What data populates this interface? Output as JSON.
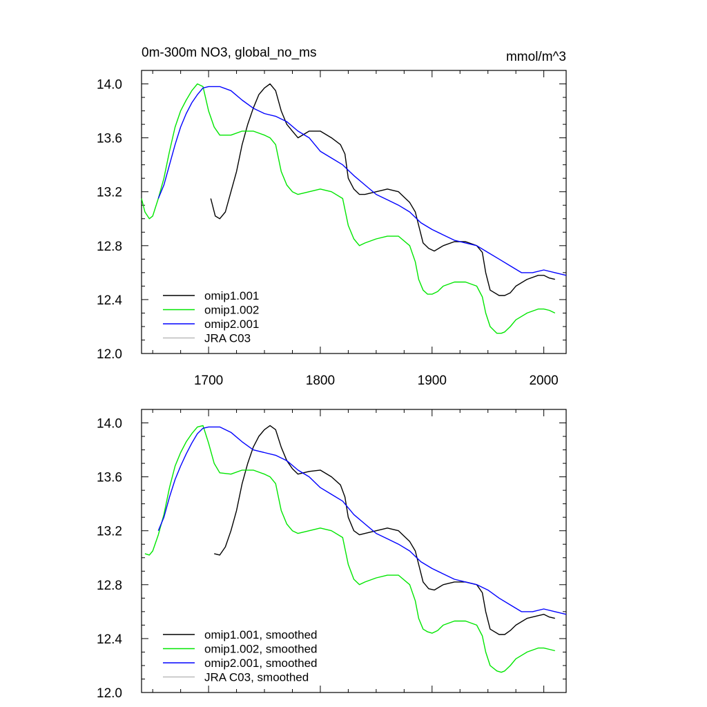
{
  "chart_data": [
    {
      "type": "line",
      "title": "0m-300m NO3, global_no_ms",
      "units": "mmol/m^3",
      "xlim": [
        1640,
        2020
      ],
      "ylim": [
        12.0,
        14.1
      ],
      "x_ticks": [
        1700,
        1800,
        1900,
        2000
      ],
      "y_ticks": [
        12.0,
        12.4,
        12.8,
        13.2,
        13.6,
        14.0
      ],
      "y_tick_labels": [
        "12.0",
        "12.4",
        "12.8",
        "13.2",
        "13.6",
        "14.0"
      ],
      "legend_position": "bottom-left",
      "series": [
        {
          "name": "omip1.001",
          "color": "#000000",
          "x": [
            1702,
            1706,
            1710,
            1715,
            1720,
            1725,
            1730,
            1735,
            1740,
            1745,
            1750,
            1755,
            1760,
            1765,
            1770,
            1775,
            1780,
            1790,
            1800,
            1810,
            1818,
            1822,
            1825,
            1830,
            1835,
            1840,
            1850,
            1860,
            1870,
            1880,
            1885,
            1888,
            1892,
            1897,
            1902,
            1910,
            1920,
            1930,
            1940,
            1945,
            1948,
            1952,
            1960,
            1965,
            1970,
            1975,
            1985,
            1995,
            2000,
            2005,
            2010
          ],
          "y": [
            13.15,
            13.02,
            13.0,
            13.05,
            13.2,
            13.35,
            13.55,
            13.7,
            13.82,
            13.92,
            13.97,
            14.0,
            13.95,
            13.8,
            13.7,
            13.65,
            13.6,
            13.65,
            13.65,
            13.6,
            13.55,
            13.48,
            13.3,
            13.22,
            13.18,
            13.18,
            13.2,
            13.22,
            13.2,
            13.12,
            13.05,
            12.95,
            12.82,
            12.78,
            12.76,
            12.8,
            12.83,
            12.83,
            12.8,
            12.75,
            12.6,
            12.47,
            12.43,
            12.43,
            12.45,
            12.5,
            12.55,
            12.58,
            12.58,
            12.56,
            12.55
          ]
        },
        {
          "name": "omip1.002",
          "color": "#00e600",
          "x": [
            1640,
            1643,
            1647,
            1650,
            1655,
            1660,
            1665,
            1670,
            1675,
            1680,
            1685,
            1690,
            1695,
            1700,
            1705,
            1710,
            1720,
            1730,
            1740,
            1750,
            1755,
            1760,
            1765,
            1770,
            1775,
            1780,
            1790,
            1800,
            1810,
            1820,
            1825,
            1830,
            1835,
            1840,
            1850,
            1860,
            1870,
            1880,
            1885,
            1888,
            1892,
            1896,
            1900,
            1905,
            1910,
            1920,
            1930,
            1940,
            1945,
            1948,
            1952,
            1958,
            1962,
            1965,
            1970,
            1975,
            1985,
            1995,
            2000,
            2005,
            2010
          ],
          "y": [
            13.15,
            13.05,
            13.0,
            13.02,
            13.15,
            13.3,
            13.5,
            13.68,
            13.8,
            13.88,
            13.95,
            14.0,
            13.98,
            13.8,
            13.68,
            13.62,
            13.62,
            13.65,
            13.65,
            13.62,
            13.6,
            13.55,
            13.35,
            13.25,
            13.2,
            13.18,
            13.2,
            13.22,
            13.2,
            13.15,
            12.95,
            12.85,
            12.8,
            12.82,
            12.85,
            12.87,
            12.87,
            12.8,
            12.68,
            12.55,
            12.47,
            12.44,
            12.44,
            12.46,
            12.5,
            12.53,
            12.53,
            12.5,
            12.42,
            12.3,
            12.2,
            12.15,
            12.15,
            12.16,
            12.2,
            12.25,
            12.3,
            12.33,
            12.33,
            12.32,
            12.3
          ]
        },
        {
          "name": "omip2.001",
          "color": "#0000ff",
          "x": [
            1655,
            1660,
            1665,
            1670,
            1675,
            1680,
            1685,
            1690,
            1695,
            1700,
            1710,
            1720,
            1730,
            1740,
            1750,
            1760,
            1770,
            1780,
            1790,
            1800,
            1810,
            1820,
            1830,
            1840,
            1850,
            1860,
            1870,
            1880,
            1890,
            1900,
            1910,
            1920,
            1930,
            1940,
            1950,
            1960,
            1970,
            1980,
            1990,
            2000,
            2010,
            2020
          ],
          "y": [
            13.15,
            13.25,
            13.4,
            13.55,
            13.68,
            13.78,
            13.86,
            13.92,
            13.97,
            13.98,
            13.98,
            13.95,
            13.88,
            13.82,
            13.78,
            13.76,
            13.72,
            13.65,
            13.6,
            13.5,
            13.45,
            13.4,
            13.32,
            13.25,
            13.18,
            13.14,
            13.1,
            13.05,
            12.97,
            12.92,
            12.88,
            12.84,
            12.82,
            12.8,
            12.75,
            12.7,
            12.65,
            12.6,
            12.6,
            12.62,
            12.6,
            12.58
          ]
        },
        {
          "name": "JRA C03",
          "color": "#bbbbbb",
          "x": [],
          "y": []
        }
      ]
    },
    {
      "type": "line",
      "xlim": [
        1640,
        2020
      ],
      "ylim": [
        12.0,
        14.1
      ],
      "x_ticks": [
        1700,
        1800,
        1900,
        2000
      ],
      "y_ticks": [
        12.0,
        12.4,
        12.8,
        13.2,
        13.6,
        14.0
      ],
      "y_tick_labels": [
        "12.0",
        "12.4",
        "12.8",
        "13.2",
        "13.6",
        "14.0"
      ],
      "legend_position": "bottom-left",
      "series": [
        {
          "name": "omip1.001, smoothed",
          "color": "#000000",
          "x": [
            1705,
            1710,
            1715,
            1720,
            1725,
            1730,
            1735,
            1740,
            1745,
            1750,
            1755,
            1760,
            1765,
            1770,
            1775,
            1780,
            1790,
            1800,
            1810,
            1818,
            1822,
            1825,
            1830,
            1835,
            1840,
            1850,
            1860,
            1870,
            1880,
            1885,
            1888,
            1892,
            1897,
            1902,
            1910,
            1920,
            1930,
            1940,
            1945,
            1948,
            1952,
            1960,
            1965,
            1970,
            1975,
            1985,
            1995,
            2000,
            2005,
            2010
          ],
          "y": [
            13.03,
            13.02,
            13.08,
            13.2,
            13.35,
            13.55,
            13.7,
            13.82,
            13.9,
            13.95,
            13.98,
            13.95,
            13.82,
            13.72,
            13.66,
            13.62,
            13.64,
            13.65,
            13.6,
            13.54,
            13.45,
            13.3,
            13.2,
            13.17,
            13.18,
            13.2,
            13.22,
            13.2,
            13.12,
            13.05,
            12.95,
            12.82,
            12.77,
            12.76,
            12.8,
            12.82,
            12.82,
            12.8,
            12.74,
            12.6,
            12.47,
            12.43,
            12.43,
            12.46,
            12.5,
            12.55,
            12.57,
            12.58,
            12.56,
            12.55
          ]
        },
        {
          "name": "omip1.002, smoothed",
          "color": "#00e600",
          "x": [
            1643,
            1647,
            1650,
            1655,
            1660,
            1665,
            1670,
            1675,
            1680,
            1685,
            1690,
            1695,
            1700,
            1705,
            1710,
            1720,
            1730,
            1740,
            1750,
            1755,
            1760,
            1765,
            1770,
            1775,
            1780,
            1790,
            1800,
            1810,
            1820,
            1825,
            1830,
            1835,
            1840,
            1850,
            1860,
            1870,
            1880,
            1885,
            1888,
            1892,
            1896,
            1900,
            1905,
            1910,
            1920,
            1930,
            1940,
            1945,
            1948,
            1952,
            1958,
            1962,
            1965,
            1970,
            1975,
            1985,
            1995,
            2000,
            2005,
            2010
          ],
          "y": [
            13.03,
            13.02,
            13.05,
            13.17,
            13.32,
            13.52,
            13.68,
            13.78,
            13.86,
            13.92,
            13.97,
            13.98,
            13.85,
            13.7,
            13.63,
            13.62,
            13.65,
            13.65,
            13.62,
            13.6,
            13.55,
            13.35,
            13.25,
            13.2,
            13.18,
            13.2,
            13.22,
            13.2,
            13.15,
            12.95,
            12.84,
            12.8,
            12.82,
            12.85,
            12.87,
            12.87,
            12.8,
            12.68,
            12.55,
            12.47,
            12.45,
            12.44,
            12.46,
            12.5,
            12.53,
            12.53,
            12.5,
            12.42,
            12.3,
            12.2,
            12.16,
            12.15,
            12.16,
            12.2,
            12.25,
            12.3,
            12.33,
            12.33,
            12.32,
            12.31
          ]
        },
        {
          "name": "omip2.001, smoothed",
          "color": "#0000ff",
          "x": [
            1655,
            1660,
            1665,
            1670,
            1675,
            1680,
            1685,
            1690,
            1695,
            1700,
            1710,
            1720,
            1730,
            1740,
            1750,
            1760,
            1770,
            1780,
            1790,
            1800,
            1810,
            1820,
            1830,
            1840,
            1850,
            1860,
            1870,
            1880,
            1890,
            1900,
            1910,
            1920,
            1930,
            1940,
            1950,
            1960,
            1970,
            1980,
            1990,
            2000,
            2010,
            2020
          ],
          "y": [
            13.2,
            13.3,
            13.45,
            13.58,
            13.68,
            13.77,
            13.85,
            13.92,
            13.96,
            13.97,
            13.97,
            13.93,
            13.86,
            13.8,
            13.78,
            13.76,
            13.72,
            13.65,
            13.6,
            13.52,
            13.47,
            13.42,
            13.32,
            13.25,
            13.18,
            13.14,
            13.1,
            13.05,
            12.97,
            12.92,
            12.88,
            12.84,
            12.82,
            12.8,
            12.76,
            12.7,
            12.65,
            12.6,
            12.6,
            12.62,
            12.6,
            12.58
          ]
        },
        {
          "name": "JRA C03, smoothed",
          "color": "#bbbbbb",
          "x": [],
          "y": []
        }
      ]
    }
  ]
}
